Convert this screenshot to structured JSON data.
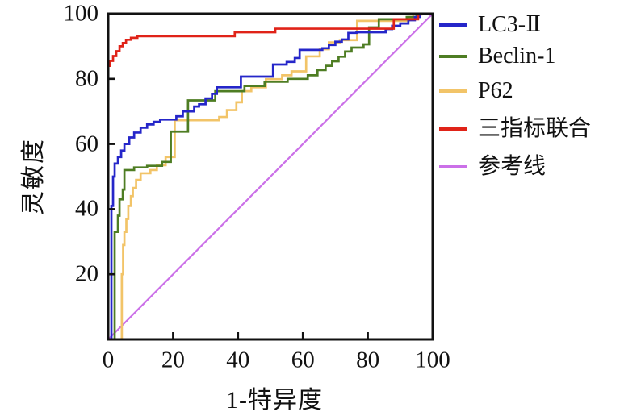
{
  "chart_data": {
    "type": "line",
    "chart_kind": "roc-curve",
    "xlabel": "1-特异度",
    "ylabel": "灵敏度",
    "xlim": [
      0,
      100
    ],
    "ylim": [
      0,
      100
    ],
    "grid": false,
    "legend_position": "right-outside",
    "x_ticks": [
      0,
      20,
      40,
      60,
      80,
      100
    ],
    "y_ticks": [
      100,
      80,
      60,
      40,
      20
    ],
    "series": [
      {
        "name": "P62",
        "color": "#f2c468",
        "points": [
          [
            0,
            0
          ],
          [
            4.2,
            0
          ],
          [
            4.2,
            20
          ],
          [
            4.6,
            20
          ],
          [
            4.6,
            29
          ],
          [
            5,
            29
          ],
          [
            5,
            33
          ],
          [
            5.6,
            33
          ],
          [
            5.6,
            37
          ],
          [
            6.2,
            37
          ],
          [
            6.2,
            41
          ],
          [
            7,
            41
          ],
          [
            7,
            44
          ],
          [
            7.6,
            44
          ],
          [
            7.6,
            46.5
          ],
          [
            8.6,
            46.5
          ],
          [
            8.6,
            49
          ],
          [
            10,
            49
          ],
          [
            10,
            51
          ],
          [
            13,
            51
          ],
          [
            13,
            52
          ],
          [
            15,
            52
          ],
          [
            15,
            53.5
          ],
          [
            17.7,
            53.5
          ],
          [
            17.7,
            56
          ],
          [
            20.5,
            56
          ],
          [
            20.5,
            67.3
          ],
          [
            34.2,
            67.3
          ],
          [
            34.2,
            68.3
          ],
          [
            36.6,
            68.3
          ],
          [
            36.6,
            70.4
          ],
          [
            39.5,
            70.4
          ],
          [
            39.5,
            72.8
          ],
          [
            41.2,
            72.8
          ],
          [
            41.2,
            76.2
          ],
          [
            44.1,
            76.2
          ],
          [
            44.1,
            77.4
          ],
          [
            48.6,
            77.4
          ],
          [
            48.6,
            79.9
          ],
          [
            53.6,
            79.9
          ],
          [
            53.6,
            81.1
          ],
          [
            56.5,
            81.1
          ],
          [
            56.5,
            82.3
          ],
          [
            61,
            82.3
          ],
          [
            61,
            86.9
          ],
          [
            65.2,
            86.9
          ],
          [
            65.2,
            89.1
          ],
          [
            68,
            89.1
          ],
          [
            68,
            91.2
          ],
          [
            71.4,
            91.2
          ],
          [
            71.4,
            91.9
          ],
          [
            76.7,
            91.9
          ],
          [
            76.7,
            97.8
          ],
          [
            92.5,
            97.8
          ],
          [
            92.5,
            99
          ],
          [
            94,
            99
          ],
          [
            94,
            100
          ],
          [
            100,
            100
          ]
        ]
      },
      {
        "name": "Beclin-1",
        "color": "#4e7d23",
        "points": [
          [
            0,
            0
          ],
          [
            2,
            0
          ],
          [
            2,
            33
          ],
          [
            3,
            33
          ],
          [
            3,
            38
          ],
          [
            3.5,
            38
          ],
          [
            3.5,
            43
          ],
          [
            4.5,
            43
          ],
          [
            4.5,
            46
          ],
          [
            5,
            46
          ],
          [
            5,
            52
          ],
          [
            8,
            52
          ],
          [
            8,
            52.8
          ],
          [
            12,
            52.8
          ],
          [
            12,
            53.3
          ],
          [
            16.6,
            53.3
          ],
          [
            16.6,
            54.5
          ],
          [
            19.3,
            54.5
          ],
          [
            19.3,
            63.8
          ],
          [
            24.6,
            63.8
          ],
          [
            24.6,
            73.4
          ],
          [
            33,
            73.4
          ],
          [
            33,
            76.2
          ],
          [
            42,
            76.2
          ],
          [
            42,
            77.8
          ],
          [
            48.2,
            77.8
          ],
          [
            48.2,
            79.1
          ],
          [
            55.3,
            79.1
          ],
          [
            55.3,
            80
          ],
          [
            61.5,
            80
          ],
          [
            61.5,
            81.1
          ],
          [
            64.5,
            81.1
          ],
          [
            64.5,
            82.7
          ],
          [
            67,
            82.7
          ],
          [
            67,
            84
          ],
          [
            69,
            84
          ],
          [
            69,
            85.4
          ],
          [
            71,
            85.4
          ],
          [
            71,
            86.8
          ],
          [
            73,
            86.8
          ],
          [
            73,
            88.4
          ],
          [
            75,
            88.4
          ],
          [
            75,
            89.6
          ],
          [
            78.7,
            89.6
          ],
          [
            78.7,
            90.6
          ],
          [
            80.4,
            90.6
          ],
          [
            80.4,
            95.8
          ],
          [
            83.4,
            95.8
          ],
          [
            83.4,
            98.3
          ],
          [
            92,
            98.3
          ],
          [
            92,
            99
          ],
          [
            95,
            99
          ],
          [
            95,
            100
          ],
          [
            100,
            100
          ]
        ]
      },
      {
        "name": "LC3-Ⅱ",
        "color": "#2526c9",
        "points": [
          [
            0,
            0
          ],
          [
            1,
            0
          ],
          [
            1,
            41
          ],
          [
            1.5,
            41
          ],
          [
            1.5,
            50
          ],
          [
            2,
            50
          ],
          [
            2,
            54
          ],
          [
            3,
            54
          ],
          [
            3,
            56
          ],
          [
            4,
            56
          ],
          [
            4,
            58
          ],
          [
            5,
            58
          ],
          [
            5,
            60
          ],
          [
            6.5,
            60
          ],
          [
            6.5,
            62
          ],
          [
            8,
            62
          ],
          [
            8,
            63.5
          ],
          [
            10,
            63.5
          ],
          [
            10,
            65
          ],
          [
            12,
            65
          ],
          [
            12,
            66
          ],
          [
            14,
            66
          ],
          [
            14,
            66.8
          ],
          [
            16,
            66.8
          ],
          [
            16,
            67.5
          ],
          [
            21,
            67.5
          ],
          [
            21,
            68.5
          ],
          [
            23,
            68.5
          ],
          [
            23,
            70
          ],
          [
            26.5,
            70
          ],
          [
            26.5,
            71.5
          ],
          [
            28,
            71.5
          ],
          [
            28,
            72.2
          ],
          [
            30,
            72.2
          ],
          [
            30,
            74
          ],
          [
            32,
            74
          ],
          [
            32,
            75.4
          ],
          [
            33.5,
            75.4
          ],
          [
            33.5,
            77.4
          ],
          [
            40.9,
            77.4
          ],
          [
            40.9,
            80.7
          ],
          [
            50.8,
            80.7
          ],
          [
            50.8,
            84.4
          ],
          [
            55,
            84.4
          ],
          [
            55,
            85.2
          ],
          [
            57.5,
            85.2
          ],
          [
            57.5,
            86.4
          ],
          [
            59,
            86.4
          ],
          [
            59,
            88.9
          ],
          [
            66,
            88.9
          ],
          [
            66,
            89.4
          ],
          [
            68,
            89.4
          ],
          [
            68,
            90.4
          ],
          [
            70,
            90.4
          ],
          [
            70,
            91.4
          ],
          [
            72,
            91.4
          ],
          [
            72,
            92.1
          ],
          [
            74,
            92.1
          ],
          [
            74,
            94.1
          ],
          [
            76.5,
            94.1
          ],
          [
            76.5,
            94.3
          ],
          [
            85.5,
            94.3
          ],
          [
            85.5,
            95.3
          ],
          [
            87.5,
            95.3
          ],
          [
            87.5,
            96.3
          ],
          [
            90,
            96.3
          ],
          [
            90,
            97
          ],
          [
            92.5,
            97
          ],
          [
            92.5,
            98
          ],
          [
            94.5,
            98
          ],
          [
            94.5,
            99
          ],
          [
            96,
            99
          ],
          [
            96,
            100
          ],
          [
            100,
            100
          ]
        ]
      },
      {
        "name": "三指标联合",
        "color": "#e02318",
        "points": [
          [
            0,
            0
          ],
          [
            0,
            84
          ],
          [
            0.5,
            84
          ],
          [
            0.5,
            85.5
          ],
          [
            1.5,
            85.5
          ],
          [
            1.5,
            87
          ],
          [
            2.5,
            87
          ],
          [
            2.5,
            88.5
          ],
          [
            3.5,
            88.5
          ],
          [
            3.5,
            90
          ],
          [
            4.5,
            90
          ],
          [
            4.5,
            91
          ],
          [
            5.5,
            91
          ],
          [
            5.5,
            92
          ],
          [
            7,
            92
          ],
          [
            7,
            92.6
          ],
          [
            9,
            92.6
          ],
          [
            9,
            93.1
          ],
          [
            39,
            93.1
          ],
          [
            39,
            94.3
          ],
          [
            51.5,
            94.3
          ],
          [
            51.5,
            95.4
          ],
          [
            88,
            95.4
          ],
          [
            88,
            98.3
          ],
          [
            95.5,
            98.3
          ],
          [
            95.5,
            99.8
          ],
          [
            96.5,
            99.8
          ],
          [
            96.5,
            100
          ],
          [
            100,
            100
          ]
        ]
      }
    ],
    "reference_line": {
      "name": "参考线",
      "color": "#cb70e8",
      "points": [
        [
          0,
          0
        ],
        [
          100,
          100
        ]
      ]
    }
  },
  "legend": {
    "items": [
      {
        "label": "LC3-Ⅱ",
        "color": "#2526c9"
      },
      {
        "label": "Beclin-1",
        "color": "#4e7d23"
      },
      {
        "label": "P62",
        "color": "#f2c468"
      },
      {
        "label": "三指标联合",
        "color": "#e02318"
      },
      {
        "label": "参考线",
        "color": "#cb70e8"
      }
    ]
  },
  "axes": {
    "x_tick_labels": [
      "0",
      "20",
      "40",
      "60",
      "80",
      "100"
    ],
    "y_tick_labels": [
      "100",
      "80",
      "60",
      "40",
      "20"
    ],
    "axis_color": "#111111"
  }
}
